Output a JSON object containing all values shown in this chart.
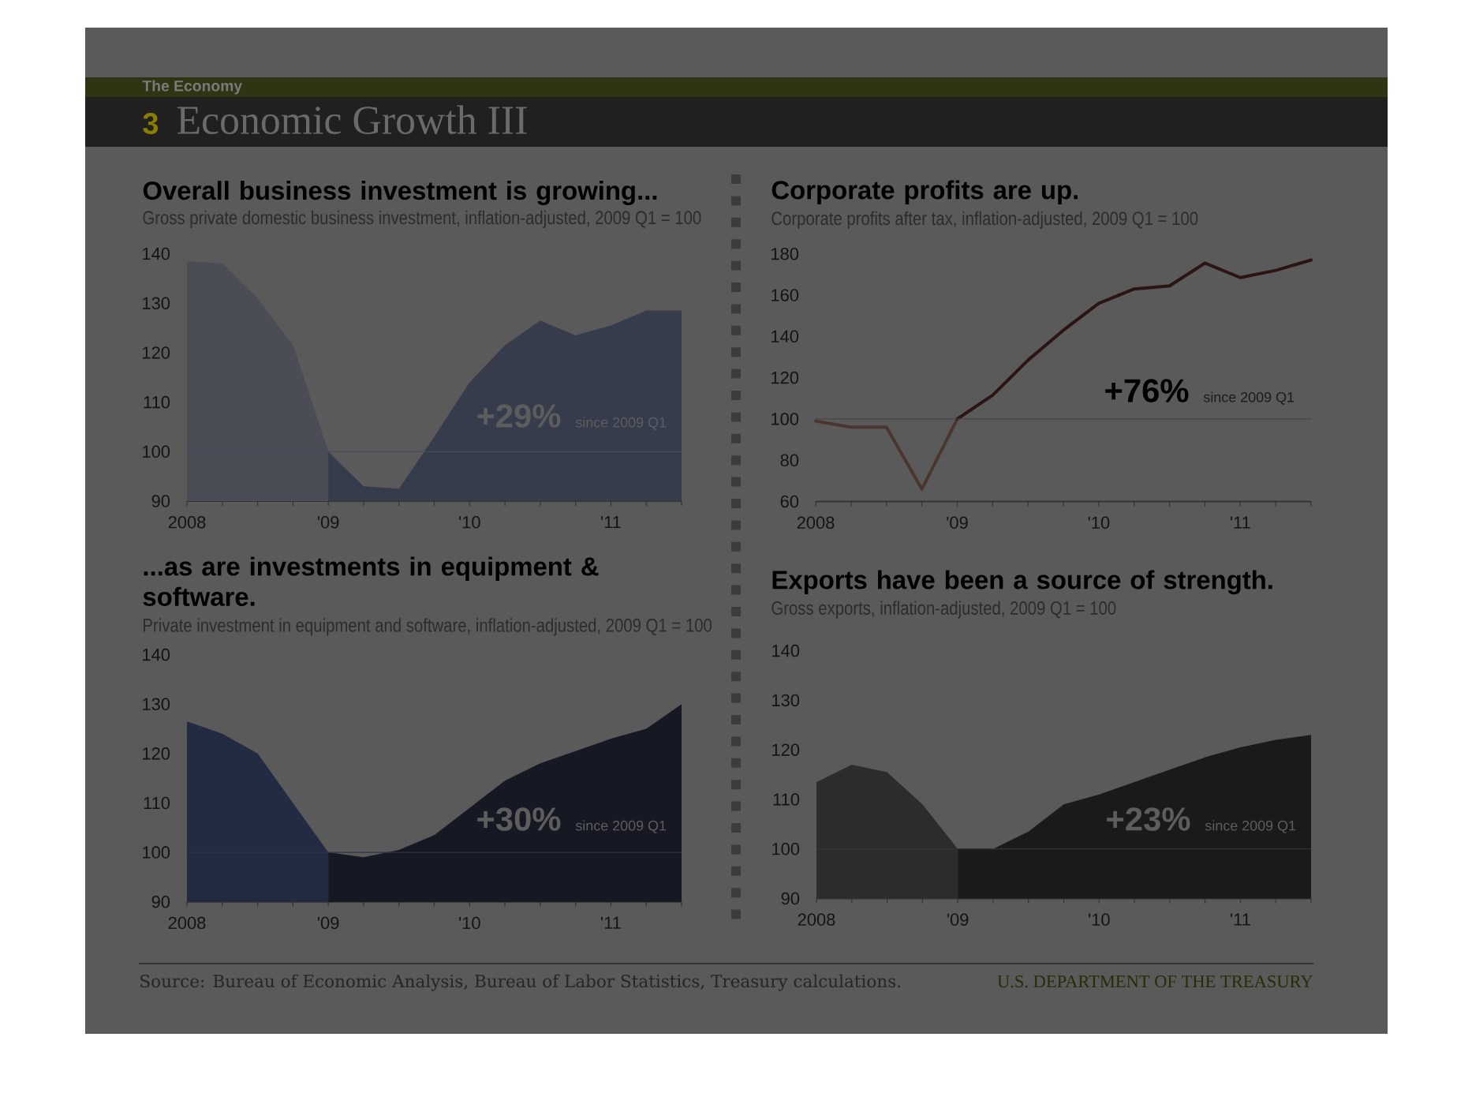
{
  "chart_data": [
    {
      "type": "other",
      "title": "Economic Growth III",
      "annotations": [
        "The Economy",
        "3"
      ]
    },
    {
      "type": "area",
      "title": "Overall business investment is growing...",
      "subtitle": "Gross private domestic business investment, inflation-adjusted, 2009 Q1 = 100",
      "series": [
        {
          "color": "#4a4d56",
          "x": [
            2008,
            2008.25,
            2008.5,
            2008.75,
            2009
          ],
          "values": [
            138.5,
            138,
            131,
            121.5,
            100
          ]
        },
        {
          "color": "#363c4b",
          "x": [
            2009,
            2009.25,
            2009.5,
            2009.75,
            2010,
            2010.25,
            2010.5,
            2010.75,
            2011,
            2011.25,
            2011.5
          ],
          "values": [
            100,
            93,
            92.5,
            103,
            114,
            121.5,
            126.5,
            123.5,
            125.5,
            128.5,
            128.5
          ]
        }
      ],
      "xlim": [
        2008,
        2011.5
      ],
      "xticks": [
        2008,
        {
          "value": 2008.25,
          "label": null
        },
        {
          "value": 2008.5,
          "label": null
        },
        {
          "value": 2008.75,
          "label": null
        },
        {
          "value": 2009,
          "label": "'09"
        },
        {
          "value": 2009.25,
          "label": null
        },
        {
          "value": 2009.5,
          "label": null
        },
        {
          "value": 2009.75,
          "label": null
        },
        {
          "value": 2010,
          "label": "'10"
        },
        {
          "value": 2010.25,
          "label": null
        },
        {
          "value": 2010.5,
          "label": null
        },
        {
          "value": 2010.75,
          "label": null
        },
        {
          "value": 2011,
          "label": "'11"
        },
        {
          "value": 2011.25,
          "label": null
        },
        {
          "value": 2011.5,
          "label": null
        }
      ],
      "ylim": [
        90,
        140
      ],
      "yticks": [
        90,
        100,
        110,
        120,
        130,
        140
      ],
      "ref_lines": [
        {
          "axis": "y",
          "value": 100,
          "color": "#474c5c"
        }
      ],
      "annotations": [
        "+29%",
        "since 2009 Q1"
      ]
    },
    {
      "type": "line",
      "title": "Corporate profits are up.",
      "subtitle": "Corporate profits after tax, inflation-adjusted, 2009 Q1 = 100",
      "series": [
        {
          "color": "#4b3530",
          "x": [
            2008,
            2008.25,
            2008.5,
            2008.75,
            2009
          ],
          "values": [
            99,
            96,
            96,
            66,
            100
          ]
        },
        {
          "color": "#2b1513",
          "x": [
            2009,
            2009.25,
            2009.5,
            2009.75,
            2010,
            2010.25,
            2010.5,
            2010.75,
            2011,
            2011.25,
            2011.5
          ],
          "values": [
            100,
            111.5,
            128.5,
            143,
            156,
            163,
            164.5,
            175.5,
            168.5,
            172,
            177
          ]
        }
      ],
      "xlim": [
        2008,
        2011.5
      ],
      "xticks": [
        2008,
        {
          "value": 2008.25,
          "label": null
        },
        {
          "value": 2008.5,
          "label": null
        },
        {
          "value": 2008.75,
          "label": null
        },
        {
          "value": 2009,
          "label": "'09"
        },
        {
          "value": 2009.25,
          "label": null
        },
        {
          "value": 2009.5,
          "label": null
        },
        {
          "value": 2009.75,
          "label": null
        },
        {
          "value": 2010,
          "label": "'10"
        },
        {
          "value": 2010.25,
          "label": null
        },
        {
          "value": 2010.5,
          "label": null
        },
        {
          "value": 2010.75,
          "label": null
        },
        {
          "value": 2011,
          "label": "'11"
        },
        {
          "value": 2011.25,
          "label": null
        },
        {
          "value": 2011.5,
          "label": null
        }
      ],
      "ylim": [
        60,
        180
      ],
      "yticks": [
        60,
        80,
        100,
        120,
        140,
        160,
        180
      ],
      "ref_lines": [
        {
          "axis": "y",
          "value": 100,
          "color": "#464646"
        }
      ],
      "annotations": [
        "+76%",
        "since 2009 Q1"
      ]
    },
    {
      "type": "area",
      "title": "...as are investments in equipment & software.",
      "subtitle": "Private investment in equipment and software, inflation-adjusted, 2009 Q1 = 100",
      "series": [
        {
          "color": "#232b42",
          "x": [
            2008,
            2008.25,
            2008.5,
            2008.75,
            2009
          ],
          "values": [
            126.5,
            124,
            120,
            110,
            100
          ]
        },
        {
          "color": "#161923",
          "x": [
            2009,
            2009.25,
            2009.5,
            2009.75,
            2010,
            2010.25,
            2010.5,
            2010.75,
            2011,
            2011.25,
            2011.5
          ],
          "values": [
            100,
            99,
            100.5,
            103.5,
            109,
            114.5,
            118,
            120.5,
            123,
            125,
            130
          ]
        }
      ],
      "xlim": [
        2008,
        2011.5
      ],
      "xticks": [
        2008,
        {
          "value": 2008.25,
          "label": null
        },
        {
          "value": 2008.5,
          "label": null
        },
        {
          "value": 2008.75,
          "label": null
        },
        {
          "value": 2009,
          "label": "'09"
        },
        {
          "value": 2009.25,
          "label": null
        },
        {
          "value": 2009.5,
          "label": null
        },
        {
          "value": 2009.75,
          "label": null
        },
        {
          "value": 2010,
          "label": "'10"
        },
        {
          "value": 2010.25,
          "label": null
        },
        {
          "value": 2010.5,
          "label": null
        },
        {
          "value": 2010.75,
          "label": null
        },
        {
          "value": 2011,
          "label": "'11"
        },
        {
          "value": 2011.25,
          "label": null
        },
        {
          "value": 2011.5,
          "label": null
        }
      ],
      "ylim": [
        90,
        140
      ],
      "yticks": [
        90,
        100,
        110,
        120,
        130,
        140
      ],
      "ref_lines": [
        {
          "axis": "y",
          "value": 100,
          "color": "#2f3548"
        }
      ],
      "annotations": [
        "+30%",
        "since 2009 Q1"
      ]
    },
    {
      "type": "area",
      "title": "Exports have been a source of strength.",
      "subtitle": "Gross exports, inflation-adjusted, 2009 Q1 = 100",
      "series": [
        {
          "color": "#2c2c2c",
          "x": [
            2008,
            2008.25,
            2008.5,
            2008.75,
            2009
          ],
          "values": [
            113.5,
            117,
            115.5,
            109,
            100
          ]
        },
        {
          "color": "#1a1a1a",
          "x": [
            2009,
            2009.25,
            2009.5,
            2009.75,
            2010,
            2010.25,
            2010.5,
            2010.75,
            2011,
            2011.25,
            2011.5
          ],
          "values": [
            100,
            100,
            103.5,
            109,
            111,
            113.5,
            116,
            118.5,
            120.5,
            122,
            123
          ]
        }
      ],
      "xlim": [
        2008,
        2011.5
      ],
      "xticks": [
        2008,
        {
          "value": 2008.25,
          "label": null
        },
        {
          "value": 2008.5,
          "label": null
        },
        {
          "value": 2008.75,
          "label": null
        },
        {
          "value": 2009,
          "label": "'09"
        },
        {
          "value": 2009.25,
          "label": null
        },
        {
          "value": 2009.5,
          "label": null
        },
        {
          "value": 2009.75,
          "label": null
        },
        {
          "value": 2010,
          "label": "'10"
        },
        {
          "value": 2010.25,
          "label": null
        },
        {
          "value": 2010.5,
          "label": null
        },
        {
          "value": 2010.75,
          "label": null
        },
        {
          "value": 2011,
          "label": "'11"
        },
        {
          "value": 2011.25,
          "label": null
        },
        {
          "value": 2011.5,
          "label": null
        }
      ],
      "ylim": [
        90,
        140
      ],
      "yticks": [
        90,
        100,
        110,
        120,
        130,
        140
      ],
      "ref_lines": [
        {
          "axis": "y",
          "value": 100,
          "color": "#353535"
        }
      ],
      "annotations": [
        "+23%",
        "since 2009 Q1"
      ]
    },
    {
      "type": "other",
      "annotations": [
        "Source: Bureau of Economic Analysis, Bureau of Labor Statistics, Treasury calculations.",
        "U.S. DEPARTMENT OF THE TREASURY"
      ]
    }
  ]
}
